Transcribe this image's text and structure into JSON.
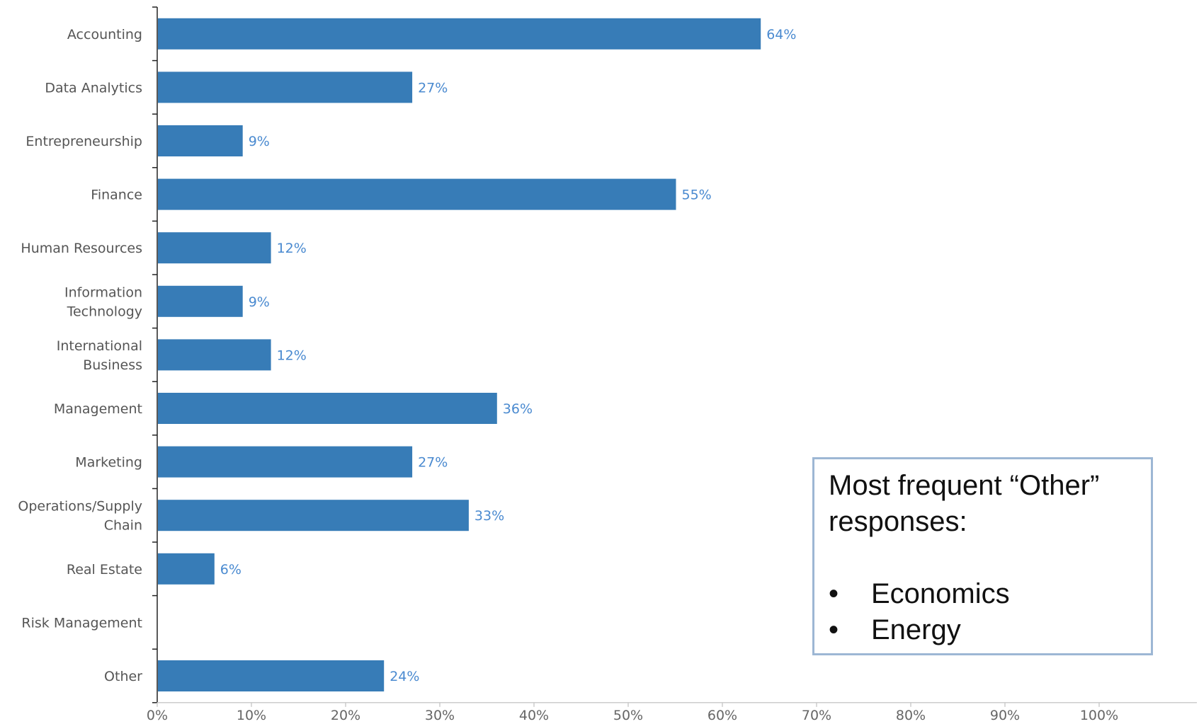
{
  "chart_data": {
    "type": "bar",
    "orientation": "horizontal",
    "categories": [
      [
        "Accounting"
      ],
      [
        "Data Analytics"
      ],
      [
        "Entrepreneurship"
      ],
      [
        "Finance"
      ],
      [
        "Human Resources"
      ],
      [
        "Information",
        "Technology"
      ],
      [
        "International",
        "Business"
      ],
      [
        "Management"
      ],
      [
        "Marketing"
      ],
      [
        "Operations/Supply",
        "Chain"
      ],
      [
        "Real Estate"
      ],
      [
        "Risk Management"
      ],
      [
        "Other"
      ]
    ],
    "values": [
      64,
      27,
      9,
      55,
      12,
      9,
      12,
      36,
      27,
      33,
      6,
      null,
      24
    ],
    "value_labels": [
      "64%",
      "27%",
      "9%",
      "55%",
      "12%",
      "9%",
      "12%",
      "36%",
      "27%",
      "33%",
      "6%",
      "",
      "24%"
    ],
    "x_ticks": [
      "0%",
      "10%",
      "20%",
      "30%",
      "40%",
      "50%",
      "60%",
      "70%",
      "80%",
      "90%",
      "100%"
    ],
    "xlim": [
      0,
      110
    ],
    "grid": false,
    "colors": {
      "bar": "#377cb7",
      "data_label": "#4a8ad0"
    }
  },
  "note": {
    "title": "Most frequent “Other” responses:",
    "bullet": "•",
    "items": [
      "Economics",
      "Energy"
    ]
  }
}
